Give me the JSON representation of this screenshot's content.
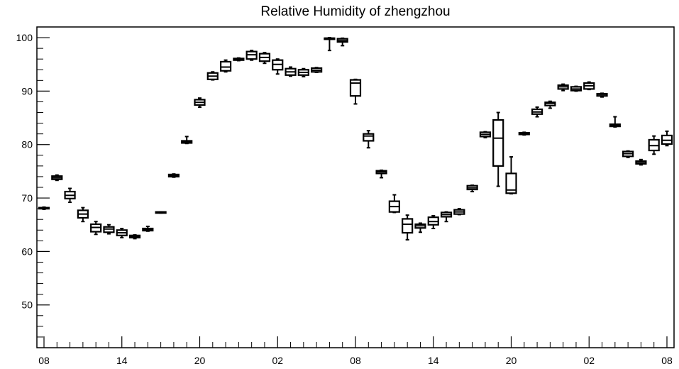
{
  "chart_data": {
    "type": "box",
    "title": "Relative Humidity of zhengzhou",
    "xlabel": "",
    "ylabel": "",
    "ylim": [
      42,
      102
    ],
    "y_ticks": [
      50,
      60,
      70,
      80,
      90,
      100
    ],
    "x_tick_labels": [
      "08",
      "14",
      "20",
      "02",
      "08",
      "14",
      "20",
      "02",
      "08"
    ],
    "x_tick_hours": [
      0,
      6,
      12,
      18,
      24,
      30,
      36,
      42,
      48
    ],
    "grid": false,
    "boxes": [
      {
        "hour": 0,
        "min": 67.9,
        "q1": 68.0,
        "median": 68.1,
        "q3": 68.2,
        "max": 68.3
      },
      {
        "hour": 1,
        "min": 73.3,
        "q1": 73.5,
        "median": 73.8,
        "q3": 74.1,
        "max": 74.3
      },
      {
        "hour": 2,
        "min": 69.2,
        "q1": 69.9,
        "median": 70.5,
        "q3": 71.2,
        "max": 71.8
      },
      {
        "hour": 3,
        "min": 65.6,
        "q1": 66.3,
        "median": 67.0,
        "q3": 67.7,
        "max": 68.2
      },
      {
        "hour": 4,
        "min": 63.2,
        "q1": 63.7,
        "median": 64.5,
        "q3": 65.1,
        "max": 65.6
      },
      {
        "hour": 5,
        "min": 63.3,
        "q1": 63.6,
        "median": 64.2,
        "q3": 64.6,
        "max": 65.0
      },
      {
        "hour": 6,
        "min": 62.6,
        "q1": 63.0,
        "median": 63.5,
        "q3": 64.0,
        "max": 64.3
      },
      {
        "hour": 7,
        "min": 62.4,
        "q1": 62.6,
        "median": 62.8,
        "q3": 63.0,
        "max": 63.1
      },
      {
        "hour": 8,
        "min": 63.8,
        "q1": 63.9,
        "median": 64.1,
        "q3": 64.3,
        "max": 64.7
      },
      {
        "hour": 9,
        "min": 67.2,
        "q1": 67.3,
        "median": 67.3,
        "q3": 67.4,
        "max": 67.4
      },
      {
        "hour": 10,
        "min": 73.9,
        "q1": 74.0,
        "median": 74.2,
        "q3": 74.4,
        "max": 74.5
      },
      {
        "hour": 11,
        "min": 80.2,
        "q1": 80.3,
        "median": 80.5,
        "q3": 80.7,
        "max": 81.5
      },
      {
        "hour": 12,
        "min": 87.0,
        "q1": 87.4,
        "median": 87.9,
        "q3": 88.4,
        "max": 88.7
      },
      {
        "hour": 13,
        "min": 92.1,
        "q1": 92.2,
        "median": 92.8,
        "q3": 93.4,
        "max": 93.6
      },
      {
        "hour": 14,
        "min": 93.6,
        "q1": 93.8,
        "median": 94.5,
        "q3": 95.5,
        "max": 95.8
      },
      {
        "hour": 15,
        "min": 95.7,
        "q1": 95.8,
        "median": 96.0,
        "q3": 96.1,
        "max": 96.2
      },
      {
        "hour": 16,
        "min": 95.8,
        "q1": 96.0,
        "median": 96.8,
        "q3": 97.4,
        "max": 97.6
      },
      {
        "hour": 17,
        "min": 95.2,
        "q1": 95.6,
        "median": 96.3,
        "q3": 97.0,
        "max": 97.2
      },
      {
        "hour": 18,
        "min": 93.2,
        "q1": 94.0,
        "median": 95.0,
        "q3": 95.8,
        "max": 96.0
      },
      {
        "hour": 19,
        "min": 92.8,
        "q1": 93.0,
        "median": 93.6,
        "q3": 94.2,
        "max": 94.5
      },
      {
        "hour": 20,
        "min": 92.7,
        "q1": 93.0,
        "median": 93.5,
        "q3": 94.0,
        "max": 94.2
      },
      {
        "hour": 21,
        "min": 93.5,
        "q1": 93.6,
        "median": 93.9,
        "q3": 94.3,
        "max": 94.4
      },
      {
        "hour": 22,
        "min": 97.6,
        "q1": 99.8,
        "median": 99.9,
        "q3": 99.9,
        "max": 100.0
      },
      {
        "hour": 23,
        "min": 98.5,
        "q1": 99.2,
        "median": 99.5,
        "q3": 99.8,
        "max": 99.9
      },
      {
        "hour": 24,
        "min": 87.6,
        "q1": 89.1,
        "median": 91.5,
        "q3": 92.1,
        "max": 92.2
      },
      {
        "hour": 25,
        "min": 79.4,
        "q1": 80.7,
        "median": 81.6,
        "q3": 82.0,
        "max": 82.6
      },
      {
        "hour": 26,
        "min": 73.8,
        "q1": 74.6,
        "median": 74.9,
        "q3": 75.1,
        "max": 75.2
      },
      {
        "hour": 27,
        "min": 67.3,
        "q1": 67.4,
        "median": 68.4,
        "q3": 69.4,
        "max": 70.6
      },
      {
        "hour": 28,
        "min": 62.2,
        "q1": 63.5,
        "median": 65.1,
        "q3": 66.1,
        "max": 66.8
      },
      {
        "hour": 29,
        "min": 63.6,
        "q1": 64.4,
        "median": 64.8,
        "q3": 65.1,
        "max": 65.3
      },
      {
        "hour": 30,
        "min": 64.3,
        "q1": 65.0,
        "median": 65.6,
        "q3": 66.4,
        "max": 66.7
      },
      {
        "hour": 31,
        "min": 65.6,
        "q1": 66.5,
        "median": 66.9,
        "q3": 67.3,
        "max": 67.4
      },
      {
        "hour": 32,
        "min": 66.9,
        "q1": 67.0,
        "median": 67.4,
        "q3": 67.8,
        "max": 68.0
      },
      {
        "hour": 33,
        "min": 71.2,
        "q1": 71.6,
        "median": 71.9,
        "q3": 72.3,
        "max": 72.4
      },
      {
        "hour": 34,
        "min": 81.3,
        "q1": 81.5,
        "median": 81.9,
        "q3": 82.3,
        "max": 82.4
      },
      {
        "hour": 35,
        "min": 72.2,
        "q1": 76.0,
        "median": 81.2,
        "q3": 84.6,
        "max": 86.0
      },
      {
        "hour": 36,
        "min": 70.8,
        "q1": 70.9,
        "median": 71.5,
        "q3": 74.6,
        "max": 77.7
      },
      {
        "hour": 37,
        "min": 81.8,
        "q1": 81.9,
        "median": 82.0,
        "q3": 82.2,
        "max": 82.3
      },
      {
        "hour": 38,
        "min": 85.2,
        "q1": 85.7,
        "median": 86.1,
        "q3": 86.6,
        "max": 87.0
      },
      {
        "hour": 39,
        "min": 86.8,
        "q1": 87.3,
        "median": 87.7,
        "q3": 87.9,
        "max": 88.1
      },
      {
        "hour": 40,
        "min": 90.1,
        "q1": 90.4,
        "median": 90.8,
        "q3": 91.1,
        "max": 91.3
      },
      {
        "hour": 41,
        "min": 90.0,
        "q1": 90.1,
        "median": 90.4,
        "q3": 90.8,
        "max": 90.9
      },
      {
        "hour": 42,
        "min": 90.3,
        "q1": 90.4,
        "median": 91.0,
        "q3": 91.5,
        "max": 91.7
      },
      {
        "hour": 43,
        "min": 88.9,
        "q1": 89.1,
        "median": 89.4,
        "q3": 89.5,
        "max": 89.6
      },
      {
        "hour": 44,
        "min": 83.3,
        "q1": 83.4,
        "median": 83.6,
        "q3": 83.8,
        "max": 85.2
      },
      {
        "hour": 45,
        "min": 77.6,
        "q1": 77.8,
        "median": 78.3,
        "q3": 78.7,
        "max": 78.8
      },
      {
        "hour": 46,
        "min": 76.2,
        "q1": 76.4,
        "median": 76.6,
        "q3": 76.9,
        "max": 77.2
      },
      {
        "hour": 47,
        "min": 78.2,
        "q1": 78.9,
        "median": 79.8,
        "q3": 80.9,
        "max": 81.6
      },
      {
        "hour": 48,
        "min": 79.8,
        "q1": 80.1,
        "median": 80.8,
        "q3": 81.7,
        "max": 82.5
      }
    ]
  }
}
